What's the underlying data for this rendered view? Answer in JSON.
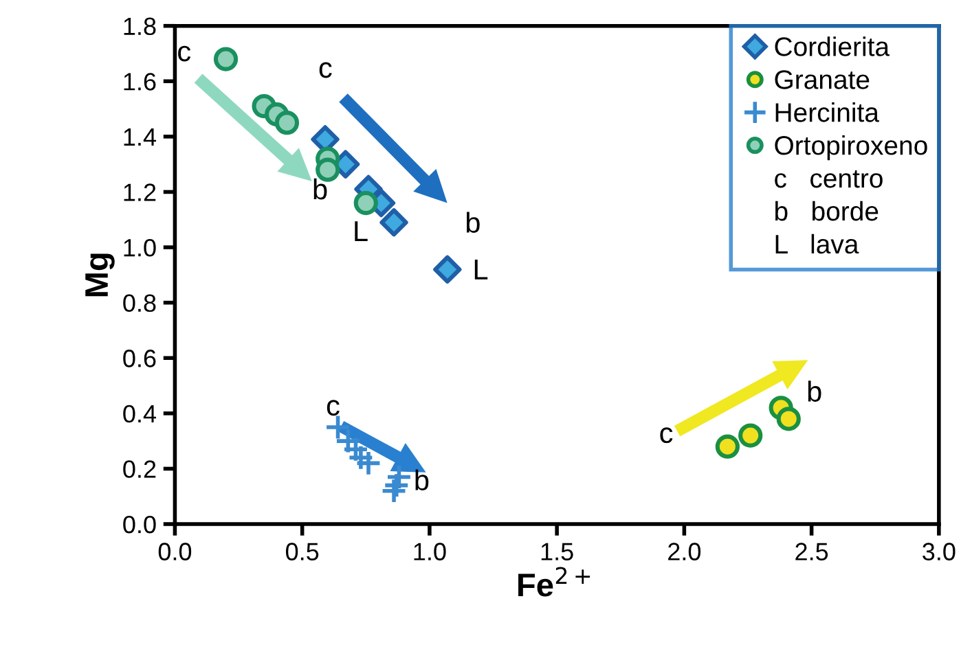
{
  "chart_data": {
    "type": "scatter",
    "xlabel": "Fe$^{2+}$",
    "ylabel": "Mg",
    "xlim": [
      0.0,
      3.0
    ],
    "ylim": [
      0.0,
      1.8
    ],
    "xticks": [
      {
        "value": 0,
        "label": "0.0"
      },
      {
        "value": 0.5,
        "label": "0.5"
      },
      {
        "value": 1,
        "label": "1.0"
      },
      {
        "value": 1.5,
        "label": "1.5"
      },
      {
        "value": 2,
        "label": "2.0"
      },
      {
        "value": 2.5,
        "label": "2.5"
      },
      {
        "value": 3,
        "label": "3.0"
      }
    ],
    "yticks": [
      {
        "value": 0,
        "label": "0.0"
      },
      {
        "value": 0.2,
        "label": "0.2"
      },
      {
        "value": 0.4,
        "label": "0.4"
      },
      {
        "value": 0.6,
        "label": "0.6"
      },
      {
        "value": 0.8,
        "label": "0.8"
      },
      {
        "value": 1,
        "label": "1.0"
      },
      {
        "value": 1.2,
        "label": "1.2"
      },
      {
        "value": 1.4,
        "label": "1.4"
      },
      {
        "value": 1.6,
        "label": "1.6"
      },
      {
        "value": 1.8,
        "label": "1.8"
      }
    ],
    "grid": false,
    "legend": "top right",
    "series": [
      {
        "name": "Cordierita",
        "color": "#3fa9e0",
        "marker": "diamond",
        "x": [
          0.59,
          0.67,
          0.76,
          0.81,
          0.86,
          1.07
        ],
        "values": [
          1.39,
          1.3,
          1.21,
          1.16,
          1.09,
          0.92
        ]
      },
      {
        "name": "Granate",
        "color": "#f0e020",
        "marker": "circle",
        "x": [
          2.17,
          2.26,
          2.38,
          2.41
        ],
        "values": [
          0.28,
          0.32,
          0.42,
          0.38
        ]
      },
      {
        "name": "Hercinita",
        "color": "#3a8ad0",
        "marker": "cross",
        "x": [
          0.64,
          0.68,
          0.71,
          0.73,
          0.76,
          0.88,
          0.87,
          0.86
        ],
        "values": [
          0.35,
          0.3,
          0.27,
          0.24,
          0.22,
          0.17,
          0.14,
          0.12
        ]
      },
      {
        "name": "Ortopiroxeno",
        "color": "#8fd0b8",
        "marker": "circle",
        "x": [
          0.2,
          0.35,
          0.4,
          0.44,
          0.6,
          0.6,
          0.75
        ],
        "values": [
          1.68,
          1.51,
          1.48,
          1.45,
          1.32,
          1.28,
          1.16
        ]
      }
    ],
    "annotations": [
      "c",
      "b",
      "c",
      "b",
      "c",
      "b",
      "c",
      "b",
      "L",
      "L",
      "c   centro",
      "b   borde",
      "L   lava"
    ]
  }
}
